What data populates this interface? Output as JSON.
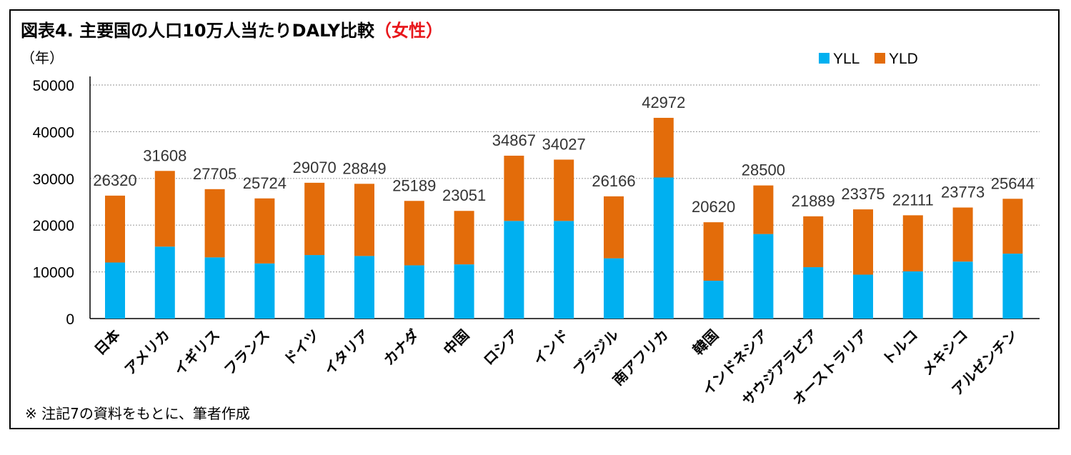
{
  "title_main": "図表4.  主要国の人口10万人当たりDALY比較",
  "title_highlight": "（女性）",
  "note": "※ 注記7の資料をもとに、筆者作成",
  "colors": {
    "yll": "#00b0f0",
    "yld": "#e36c0a",
    "grid": "#a6a6a6"
  },
  "chart_data": {
    "type": "bar",
    "stacked": true,
    "ylabel": "（年）",
    "ylim": [
      0,
      50000
    ],
    "yticks": [
      0,
      10000,
      20000,
      30000,
      40000,
      50000
    ],
    "grid": true,
    "legend_position": "top-right",
    "categories": [
      "日本",
      "アメリカ",
      "イギリス",
      "フランス",
      "ドイツ",
      "イタリア",
      "カナダ",
      "中国",
      "ロシア",
      "インド",
      "ブラジル",
      "南アフリカ",
      "韓国",
      "インドネシア",
      "サウジアラビア",
      "オーストラリア",
      "トルコ",
      "メキシコ",
      "アルゼンチン"
    ],
    "series": [
      {
        "name": "YLL",
        "values": [
          12000,
          15400,
          13100,
          11800,
          13600,
          13400,
          11400,
          11600,
          20900,
          20900,
          12900,
          30200,
          8100,
          18100,
          11000,
          9400,
          10100,
          12200,
          13900
        ]
      },
      {
        "name": "YLD",
        "values": [
          14320,
          16208,
          14605,
          13924,
          15470,
          15449,
          13789,
          11451,
          13967,
          13127,
          13266,
          12772,
          12520,
          10400,
          10889,
          13975,
          12011,
          11573,
          11744
        ]
      }
    ],
    "totals": [
      26320,
      31608,
      27705,
      25724,
      29070,
      28849,
      25189,
      23051,
      34867,
      34027,
      26166,
      42972,
      20620,
      28500,
      21889,
      23375,
      22111,
      23773,
      25644
    ]
  }
}
